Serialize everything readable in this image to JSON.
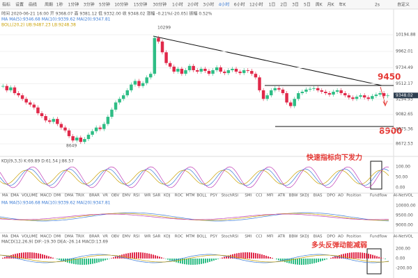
{
  "toolbar": {
    "left": [
      "指标",
      "设置",
      "画线"
    ],
    "periods": [
      "周期",
      "1秒",
      "1分钟",
      "3分钟",
      "5分钟",
      "10分钟",
      "15分钟",
      "30分钟",
      "1小时",
      "2小时",
      "3小时",
      "4小时",
      "6小时",
      "12小时",
      "1日",
      "2日",
      "3日",
      "5日",
      "周K",
      "月K",
      "年K"
    ],
    "right": [
      "2s",
      "自定义"
    ]
  },
  "info": {
    "ohlc": "时间 2020-06-21 16:00  开 9368.07  高 9381.12  低 9332.00  收 9348.02  涨幅 -0.21%(-20.05)  振幅 0.52%",
    "ma": "MA  MA(5):9346.68  MA(10):9339.62  MA(20):9347.81",
    "boll": "BOLL(20,2)  UB:9487.23  LB:9248.38"
  },
  "price_chart": {
    "closes": [
      9480,
      9420,
      9460,
      9380,
      9350,
      9300,
      9250,
      9220,
      9180,
      9100,
      9060,
      9000,
      8980,
      9020,
      8950,
      8900,
      8860,
      8780,
      8720,
      8760,
      8700,
      8740,
      8800,
      8850,
      8900,
      8880,
      8950,
      9050,
      9150,
      9250,
      9300,
      9350,
      9420,
      9500,
      9550,
      9480,
      9520,
      9600,
      9650,
      10150,
      10100,
      9950,
      9800,
      9750,
      9680,
      9720,
      9650,
      9700,
      9760,
      9700,
      9680,
      9720,
      9690,
      9650,
      9700,
      9740,
      9680,
      9660,
      9700,
      9720,
      9680,
      9660,
      9700,
      9690,
      9650,
      9600,
      9420,
      9300,
      9350,
      9420,
      9450,
      9430,
      9380,
      9250,
      9200,
      9300,
      9380,
      9400,
      9430,
      9440,
      9450,
      9420,
      9400,
      9380,
      9360,
      9400,
      9420,
      9380,
      9350,
      9320,
      9300,
      9330,
      9350,
      9320,
      9300,
      9340,
      9360,
      9380,
      9340,
      9348.02
    ],
    "ylim": [
      8566,
      10408
    ],
    "yticks": [
      10194.88,
      9962.01,
      9734.49,
      9512.17,
      9294.93,
      9082.65,
      8875.36,
      8672.53
    ],
    "last_price": "9348.02",
    "high_label": "10299",
    "low_label": "8649"
  },
  "annotations": {
    "resistance": "9450",
    "support": "8900",
    "kdj_note": "快速指标向下发力",
    "macd_note": "多头反弹动能减弱"
  },
  "kdj": {
    "label": "KDJ(9,3,3)  K:69.89  D:61.54  J:86.57",
    "axis": [
      "100.00",
      "50.00",
      "0.00"
    ]
  },
  "indicator_tabs": [
    "MA",
    "EMA",
    "VOLUME",
    "MACD",
    "DMI",
    "DMA",
    "TRIX",
    "BRAR",
    "VR",
    "OBV",
    "EMV",
    "RSI",
    "WR",
    "SAR",
    "KDJ",
    "ROC",
    "MTM",
    "BOLL",
    "PSY",
    "StochRSI",
    "SMI",
    "CCI",
    "MFI",
    "ATR",
    "BBW",
    "SKDJ",
    "BIAS",
    "DPO",
    "AO",
    "Position",
    "Fundflow",
    "AI-NetVOL",
    "LSUR",
    "BASIS",
    "TVolume"
  ],
  "ma_panel": {
    "label": "MA  MA(5):9346.68  MA(10):9339.62  MA(20):9347.81",
    "axis": [
      "10000.00",
      "9500.00",
      "9000.00"
    ]
  },
  "macd": {
    "label": "MACD(12,26,9)  DIF:-19.30  DEA:-26.14  MACD:13.69",
    "axis": [
      "200.00",
      "0.00",
      "-200.00"
    ]
  }
}
